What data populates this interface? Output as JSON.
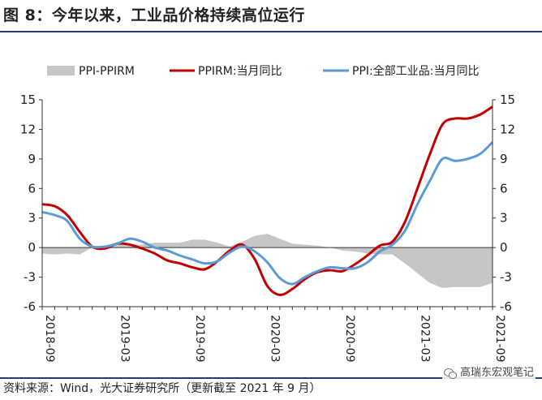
{
  "title": "图 8：今年以来，工业品价格持续高位运行",
  "source": "资料来源：Wind，光大证券研究所（更新截至 2021 年 9 月）",
  "watermark": "高瑞东宏观笔记",
  "colors": {
    "area": "#c6c6c6",
    "ppirm": "#c00000",
    "ppi": "#5b9bd5",
    "rule": "#1f3f7a"
  },
  "chart_data": {
    "type": "line",
    "title": "",
    "xlabel": "",
    "ylabel": "",
    "ylim": [
      -6,
      15
    ],
    "yticks": [
      -6,
      -3,
      0,
      3,
      6,
      9,
      12,
      15
    ],
    "yticklabels": [
      "-6",
      "-3",
      "0",
      "3",
      "6",
      "9",
      "12",
      "15"
    ],
    "y2ticklabels": [
      "-6",
      "-3",
      "0",
      "3",
      "6",
      "9",
      "12",
      "15"
    ],
    "x": [
      "2018-09",
      "2018-10",
      "2018-11",
      "2018-12",
      "2019-01",
      "2019-02",
      "2019-03",
      "2019-04",
      "2019-05",
      "2019-06",
      "2019-07",
      "2019-08",
      "2019-09",
      "2019-10",
      "2019-11",
      "2019-12",
      "2020-01",
      "2020-02",
      "2020-03",
      "2020-04",
      "2020-05",
      "2020-06",
      "2020-07",
      "2020-08",
      "2020-09",
      "2020-10",
      "2020-11",
      "2020-12",
      "2021-01",
      "2021-02",
      "2021-03",
      "2021-04",
      "2021-05",
      "2021-06",
      "2021-07",
      "2021-08",
      "2021-09"
    ],
    "xticklabels": [
      "2018-09",
      "2019-03",
      "2019-09",
      "2020-03",
      "2020-09",
      "2021-03",
      "2021-09"
    ],
    "legend": [
      "PPI-PPIRM",
      "PPIRM:当月同比",
      "PPI:全部工业品:当月同比"
    ],
    "series": [
      {
        "name": "PPI-PPIRM",
        "kind": "area",
        "values": [
          -0.6,
          -0.7,
          -0.6,
          -0.7,
          0.0,
          0.2,
          0.4,
          0.3,
          0.3,
          0.5,
          0.5,
          0.5,
          0.8,
          0.8,
          0.5,
          0.1,
          0.6,
          1.2,
          1.4,
          0.9,
          0.4,
          0.3,
          0.2,
          0.0,
          -0.3,
          -0.4,
          -0.6,
          -0.7,
          -0.7,
          -1.6,
          -2.6,
          -3.6,
          -4.1,
          -4.0,
          -4.0,
          -4.0,
          -3.6
        ]
      },
      {
        "name": "PPIRM:当月同比",
        "kind": "line",
        "values": [
          4.4,
          4.2,
          3.3,
          1.6,
          0.1,
          -0.1,
          0.4,
          0.3,
          -0.1,
          -0.6,
          -1.3,
          -1.6,
          -2.0,
          -2.2,
          -1.4,
          -0.3,
          0.3,
          -1.2,
          -3.9,
          -4.8,
          -4.2,
          -3.2,
          -2.5,
          -2.3,
          -2.4,
          -1.7,
          -0.8,
          0.2,
          0.6,
          2.6,
          6.0,
          9.5,
          12.5,
          13.1,
          13.1,
          13.5,
          14.3
        ]
      },
      {
        "name": "PPI:全部工业品:当月同比",
        "kind": "line",
        "values": [
          3.6,
          3.3,
          2.7,
          0.9,
          0.1,
          0.1,
          0.4,
          0.9,
          0.6,
          0.0,
          -0.3,
          -0.8,
          -1.2,
          -1.6,
          -1.4,
          -0.5,
          0.1,
          -0.4,
          -1.5,
          -3.1,
          -3.7,
          -3.0,
          -2.4,
          -2.0,
          -2.1,
          -2.1,
          -1.5,
          -0.4,
          0.3,
          1.7,
          4.4,
          6.8,
          9.0,
          8.8,
          9.0,
          9.5,
          10.7
        ]
      }
    ]
  }
}
